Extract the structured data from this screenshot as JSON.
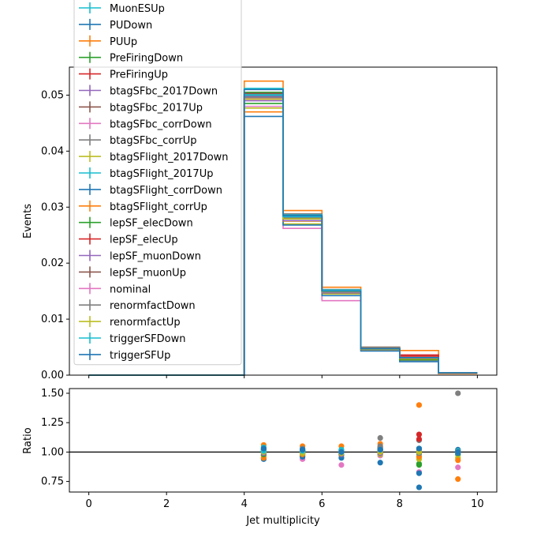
{
  "colors": [
    "#17becf",
    "#1f77b4",
    "#ff7f0e",
    "#2ca02c",
    "#d62728",
    "#9467bd",
    "#8c564b",
    "#e377c2",
    "#7f7f7f",
    "#bcbd22"
  ],
  "chart_data": [
    {
      "type": "step",
      "xlabel": "",
      "ylabel": "Events",
      "xlim": [
        -0.5,
        10.5
      ],
      "ylim": [
        0,
        0.055
      ],
      "yticks": [
        0.0,
        0.01,
        0.02,
        0.03,
        0.04,
        0.05
      ],
      "ytick_labels": [
        "0.00",
        "0.01",
        "0.02",
        "0.03",
        "0.04",
        "0.05"
      ],
      "bin_edges": [
        0,
        1,
        2,
        3,
        4,
        5,
        6,
        7,
        8,
        9,
        10
      ],
      "legend": "upper-left",
      "series": [
        {
          "name": "MuonESUp",
          "values": [
            0,
            0,
            0,
            0,
            0.0502,
            0.0282,
            0.015,
            0.0047,
            0.0031,
            0.0004
          ]
        },
        {
          "name": "PUDown",
          "values": [
            0,
            0,
            0,
            0,
            0.0498,
            0.0282,
            0.015,
            0.0047,
            0.003,
            0.0004
          ]
        },
        {
          "name": "PUUp",
          "values": [
            0,
            0,
            0,
            0,
            0.0525,
            0.0294,
            0.0157,
            0.005,
            0.0044,
            0.0003
          ]
        },
        {
          "name": "PreFiringDown",
          "values": [
            0,
            0,
            0,
            0,
            0.0505,
            0.0284,
            0.0151,
            0.0048,
            0.0028,
            0.0004
          ]
        },
        {
          "name": "PreFiringUp",
          "values": [
            0,
            0,
            0,
            0,
            0.05,
            0.0282,
            0.015,
            0.0047,
            0.0036,
            0.0004
          ]
        },
        {
          "name": "btagSFbc_2017Down",
          "values": [
            0,
            0,
            0,
            0,
            0.0497,
            0.028,
            0.0148,
            0.0046,
            0.0031,
            0.0004
          ]
        },
        {
          "name": "btagSFbc_2017Up",
          "values": [
            0,
            0,
            0,
            0,
            0.0503,
            0.0284,
            0.0152,
            0.0048,
            0.0031,
            0.0004
          ]
        },
        {
          "name": "btagSFbc_corrDown",
          "values": [
            0,
            0,
            0,
            0,
            0.048,
            0.0262,
            0.0133,
            0.0045,
            0.0026,
            0.0003
          ]
        },
        {
          "name": "btagSFbc_corrUp",
          "values": [
            0,
            0,
            0,
            0,
            0.051,
            0.0288,
            0.0153,
            0.005,
            0.0034,
            0.0004
          ]
        },
        {
          "name": "btagSFlight_2017Down",
          "values": [
            0,
            0,
            0,
            0,
            0.0477,
            0.027,
            0.0145,
            0.0045,
            0.0028,
            0.0003
          ]
        },
        {
          "name": "btagSFlight_2017Up",
          "values": [
            0,
            0,
            0,
            0,
            0.0512,
            0.0286,
            0.0152,
            0.0047,
            0.003,
            0.0004
          ]
        },
        {
          "name": "btagSFlight_corrDown",
          "values": [
            0,
            0,
            0,
            0,
            0.0462,
            0.0268,
            0.0142,
            0.0043,
            0.0024,
            0.0003
          ]
        },
        {
          "name": "btagSFlight_corrUp",
          "values": [
            0,
            0,
            0,
            0,
            0.047,
            0.0275,
            0.0147,
            0.0046,
            0.0029,
            0.0003
          ]
        },
        {
          "name": "lepSF_elecDown",
          "values": [
            0,
            0,
            0,
            0,
            0.0485,
            0.0276,
            0.0147,
            0.0046,
            0.0027,
            0.0004
          ]
        },
        {
          "name": "lepSF_elecUp",
          "values": [
            0,
            0,
            0,
            0,
            0.0493,
            0.028,
            0.0149,
            0.0046,
            0.0034,
            0.0004
          ]
        },
        {
          "name": "lepSF_muonDown",
          "values": [
            0,
            0,
            0,
            0,
            0.049,
            0.0276,
            0.0147,
            0.0046,
            0.003,
            0.0004
          ]
        },
        {
          "name": "lepSF_muonUp",
          "values": [
            0,
            0,
            0,
            0,
            0.0496,
            0.028,
            0.0149,
            0.0047,
            0.0031,
            0.0004
          ]
        },
        {
          "name": "nominal",
          "values": [
            0,
            0,
            0,
            0,
            0.0494,
            0.028,
            0.015,
            0.0046,
            0.003,
            0.0004
          ]
        },
        {
          "name": "renormfactDown",
          "values": [
            0,
            0,
            0,
            0,
            0.0496,
            0.0281,
            0.0149,
            0.0047,
            0.003,
            0.0004
          ]
        },
        {
          "name": "renormfactUp",
          "values": [
            0,
            0,
            0,
            0,
            0.0493,
            0.0279,
            0.0149,
            0.0046,
            0.003,
            0.0004
          ]
        },
        {
          "name": "triggerSFDown",
          "values": [
            0,
            0,
            0,
            0,
            0.05,
            0.0283,
            0.015,
            0.0047,
            0.0031,
            0.0004
          ]
        },
        {
          "name": "triggerSFUp",
          "values": [
            0,
            0,
            0,
            0,
            0.051,
            0.0285,
            0.015,
            0.0047,
            0.0031,
            0.0004
          ]
        }
      ]
    },
    {
      "type": "scatter",
      "xlabel": "Jet multiplicity",
      "ylabel": "Ratio",
      "xlim": [
        -0.5,
        10.5
      ],
      "ylim": [
        0.66,
        1.54
      ],
      "xticks": [
        0,
        2,
        4,
        6,
        8,
        10
      ],
      "xtick_labels": [
        "0",
        "2",
        "4",
        "6",
        "8",
        "10"
      ],
      "yticks": [
        0.75,
        1.0,
        1.25,
        1.5
      ],
      "ytick_labels": [
        "0.75",
        "1.00",
        "1.25",
        "1.50"
      ],
      "reference_line": 1.0,
      "x": [
        4.5,
        5.5,
        6.5,
        7.5,
        8.5,
        9.5
      ],
      "series": [
        {
          "values": [
            1.01,
            1.01,
            1.0,
            1.02,
            1.03,
            1.0
          ]
        },
        {
          "values": [
            1.0,
            1.01,
            1.0,
            1.02,
            0.7,
            1.02
          ]
        },
        {
          "values": [
            1.06,
            1.05,
            1.05,
            1.07,
            1.4,
            0.77
          ]
        },
        {
          "values": [
            1.02,
            1.01,
            1.01,
            1.03,
            0.9,
            0.98
          ]
        },
        {
          "values": [
            1.01,
            1.0,
            1.0,
            1.02,
            1.15,
            1.01
          ]
        },
        {
          "values": [
            1.0,
            0.99,
            0.99,
            0.99,
            1.01,
            1.0
          ]
        },
        {
          "values": [
            1.02,
            1.01,
            1.01,
            1.04,
            1.03,
            1.01
          ]
        },
        {
          "values": [
            0.97,
            0.94,
            0.89,
            0.97,
            0.83,
            0.87
          ]
        },
        {
          "values": [
            1.03,
            1.03,
            1.02,
            1.12,
            1.1,
            1.5
          ]
        },
        {
          "values": [
            0.97,
            0.97,
            0.97,
            0.98,
            0.94,
            0.95
          ]
        },
        {
          "values": [
            1.04,
            1.02,
            1.02,
            1.02,
            0.98,
            1.01
          ]
        },
        {
          "values": [
            0.94,
            0.96,
            0.95,
            0.91,
            0.82,
            0.99
          ]
        },
        {
          "values": [
            0.95,
            0.98,
            0.98,
            0.99,
            0.96,
            0.93
          ]
        },
        {
          "values": [
            0.98,
            0.99,
            0.98,
            0.99,
            0.89,
            1.0
          ]
        },
        {
          "values": [
            1.0,
            1.0,
            0.99,
            1.01,
            1.11,
            1.0
          ]
        },
        {
          "values": [
            0.99,
            0.99,
            0.98,
            0.99,
            1.0,
            1.0
          ]
        },
        {
          "values": [
            1.0,
            1.0,
            0.99,
            1.02,
            1.02,
            1.0
          ]
        },
        {
          "values": [
            1.0,
            1.0,
            1.0,
            1.0,
            1.0,
            1.0
          ]
        },
        {
          "values": [
            1.0,
            1.0,
            0.99,
            1.05,
            0.99,
            1.0
          ]
        },
        {
          "values": [
            1.0,
            0.99,
            0.99,
            1.0,
            1.0,
            1.0
          ]
        },
        {
          "values": [
            1.01,
            1.01,
            1.0,
            1.02,
            1.03,
            1.0
          ]
        },
        {
          "values": [
            1.03,
            1.02,
            1.0,
            1.02,
            1.03,
            1.0
          ]
        }
      ]
    }
  ]
}
